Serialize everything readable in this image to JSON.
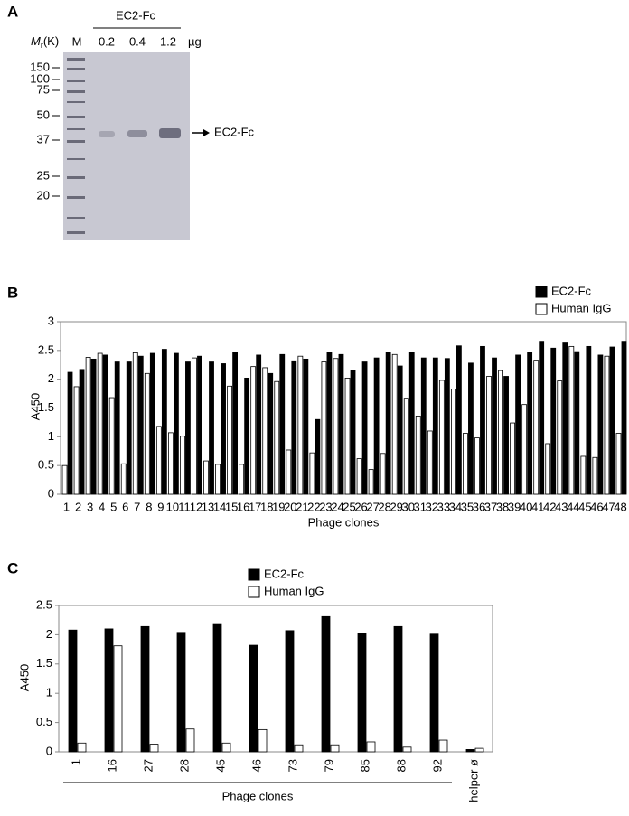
{
  "gel": {
    "panel_label": "A",
    "header": "EC2-Fc",
    "mr_symbol": "M",
    "mr_sub": "r",
    "mr_unit": "(K)",
    "marker_lane": "M",
    "lanes": [
      "0.2",
      "0.4",
      "1.2"
    ],
    "lane_unit": "µg",
    "markers": [
      "150",
      "100",
      "75",
      "50",
      "37",
      "25",
      "20"
    ],
    "arrow_label": "EC2-Fc"
  },
  "chart_data": [
    {
      "type": "bar",
      "panel_label": "B",
      "ylabel": "A450",
      "xlabel": "Phage clones",
      "legend": "top-right",
      "categories": [
        "1",
        "2",
        "3",
        "4",
        "5",
        "6",
        "7",
        "8",
        "9",
        "10",
        "11",
        "12",
        "13",
        "14",
        "15",
        "16",
        "17",
        "18",
        "19",
        "20",
        "21",
        "22",
        "23",
        "24",
        "25",
        "26",
        "27",
        "28",
        "29",
        "30",
        "31",
        "32",
        "33",
        "34",
        "35",
        "36",
        "37",
        "38",
        "39",
        "40",
        "41",
        "42",
        "43",
        "44",
        "45",
        "46",
        "47",
        "48"
      ],
      "series": [
        {
          "name": "EC2-Fc",
          "color": "#000000",
          "values": [
            2.12,
            2.17,
            2.35,
            2.42,
            2.3,
            2.3,
            2.4,
            2.45,
            2.52,
            2.45,
            2.3,
            2.4,
            2.3,
            2.27,
            2.46,
            2.02,
            2.42,
            2.1,
            2.43,
            2.32,
            2.35,
            1.3,
            2.46,
            2.43,
            2.15,
            2.3,
            2.37,
            2.46,
            2.23,
            2.46,
            2.37,
            2.37,
            2.36,
            2.58,
            2.28,
            2.57,
            2.37,
            2.05,
            2.42,
            2.46,
            2.66,
            2.54,
            2.63,
            2.48,
            2.57,
            2.42,
            2.56,
            2.66
          ]
        },
        {
          "name": "Human IgG",
          "color": "#ffffff",
          "values": [
            0.5,
            1.87,
            2.38,
            2.45,
            1.68,
            0.53,
            2.46,
            2.1,
            1.18,
            1.07,
            1.01,
            2.37,
            0.58,
            0.52,
            1.88,
            0.52,
            2.22,
            2.2,
            1.96,
            0.77,
            2.4,
            0.72,
            2.3,
            2.36,
            2.02,
            0.62,
            0.43,
            0.71,
            2.43,
            1.67,
            1.36,
            1.1,
            1.98,
            1.83,
            1.06,
            0.98,
            2.05,
            2.15,
            1.24,
            1.56,
            2.33,
            0.88,
            1.97,
            2.57,
            0.66,
            0.64,
            2.4,
            1.06
          ]
        }
      ],
      "ylim": [
        0,
        3
      ],
      "yticks": [
        0,
        0.5,
        1,
        1.5,
        2,
        2.5,
        3
      ]
    },
    {
      "type": "bar",
      "panel_label": "C",
      "ylabel": "A450",
      "xlabel": "Phage clones",
      "legend": "top-center",
      "categories": [
        "1",
        "16",
        "27",
        "28",
        "45",
        "46",
        "73",
        "79",
        "85",
        "88",
        "92",
        "helper ø"
      ],
      "series": [
        {
          "name": "EC2-Fc",
          "color": "#000000",
          "values": [
            2.08,
            2.1,
            2.14,
            2.04,
            2.19,
            1.82,
            2.07,
            2.31,
            2.03,
            2.14,
            2.01,
            0.04
          ]
        },
        {
          "name": "Human IgG",
          "color": "#ffffff",
          "values": [
            0.15,
            1.81,
            0.13,
            0.39,
            0.15,
            0.38,
            0.12,
            0.12,
            0.17,
            0.08,
            0.2,
            0.06
          ]
        }
      ],
      "ylim": [
        0,
        2.5
      ],
      "yticks": [
        0,
        0.5,
        1,
        1.5,
        2,
        2.5
      ]
    }
  ]
}
